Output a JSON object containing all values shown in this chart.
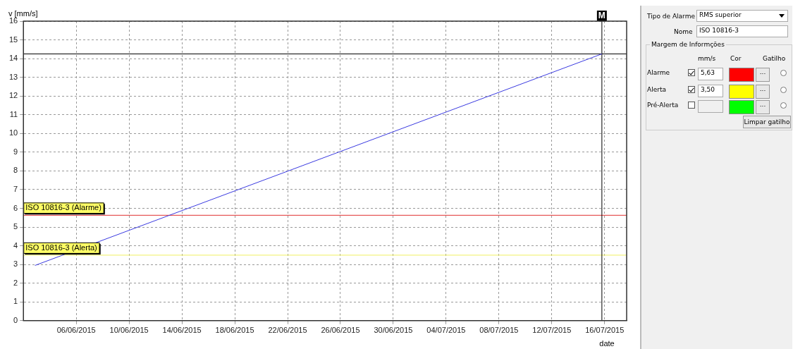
{
  "chart_data": [
    {
      "type": "line",
      "ylabel": "v [mm/s]",
      "xlabel": "date",
      "series": [
        {
          "color": "#3a3ae0",
          "x": [
            "2015-06-02T21:00",
            "2015-07-15T19:00"
          ],
          "values": [
            2.95,
            14.25
          ]
        }
      ],
      "xlim": [
        "2015-06-02",
        "2015-07-17T16:00"
      ],
      "xticks": [
        {
          "value": "2015-06-06",
          "label": "06/06/2015"
        },
        {
          "value": "2015-06-10",
          "label": "10/06/2015"
        },
        {
          "value": "2015-06-14",
          "label": "14/06/2015"
        },
        {
          "value": "2015-06-18",
          "label": "18/06/2015"
        },
        {
          "value": "2015-06-22",
          "label": "22/06/2015"
        },
        {
          "value": "2015-06-26",
          "label": "26/06/2015"
        },
        {
          "value": "2015-06-30",
          "label": "30/06/2015"
        },
        {
          "value": "2015-07-04",
          "label": "04/07/2015"
        },
        {
          "value": "2015-07-08",
          "label": "08/07/2015"
        },
        {
          "value": "2015-07-12",
          "label": "12/07/2015"
        },
        {
          "value": "2015-07-16",
          "label": "16/07/2015"
        }
      ],
      "ylim": [
        0,
        16
      ],
      "yticks": [
        0,
        1,
        2,
        3,
        4,
        5,
        6,
        7,
        8,
        9,
        10,
        11,
        12,
        13,
        14,
        15,
        16
      ],
      "grid": true,
      "legend": false,
      "marker": "none",
      "line_style": "solid",
      "ref_lines": [
        {
          "axis": "y",
          "value": 14.25,
          "color": "#000000"
        },
        {
          "axis": "y",
          "value": 5.63,
          "label": "ISO 10816-3 (Alarme)",
          "color": "#e03030"
        },
        {
          "axis": "y",
          "value": 3.5,
          "label": "ISO 10816-3 (Alerta)",
          "color": "#f0f060"
        },
        {
          "axis": "x",
          "value": "2015-07-15T19:00",
          "label": "M",
          "color": "#000000"
        }
      ]
    },
    {
      "type": "other",
      "annotations": [
        "Tipo de Alarme",
        "RMS superior",
        "Nome",
        "ISO 10816-3",
        "Margem de Informções",
        "mm/s",
        "Cor",
        "Gatilho",
        "Alarme",
        "5,63",
        "Alerta",
        "3,50",
        "Pré-Alerta",
        "Limpar gatilho",
        "...",
        "...",
        "..."
      ]
    }
  ]
}
